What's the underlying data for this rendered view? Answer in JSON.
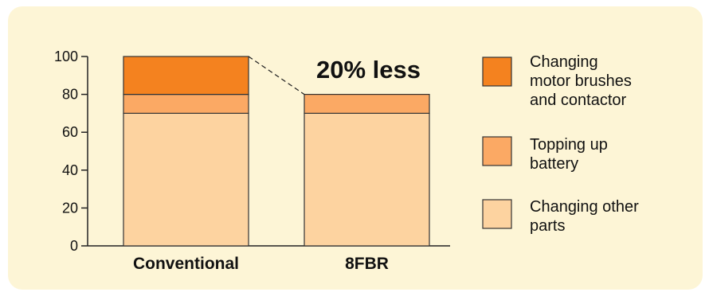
{
  "chart_data": {
    "type": "bar",
    "stacked": true,
    "categories": [
      "Conventional",
      "8FBR"
    ],
    "series": [
      {
        "name": "Changing other parts",
        "values": [
          70,
          70
        ],
        "color": "#fdd3a0"
      },
      {
        "name": "Topping up battery",
        "values": [
          10,
          10
        ],
        "color": "#fba964"
      },
      {
        "name": "Changing motor brushes and contactor",
        "values": [
          20,
          0
        ],
        "color": "#f4821f"
      }
    ],
    "legend_order": [
      "Changing motor brushes and contactor",
      "Topping up battery",
      "Changing other parts"
    ],
    "legend_placement": "right",
    "ylim": [
      0,
      100
    ],
    "yticks": [
      0,
      20,
      40,
      60,
      80,
      100
    ],
    "grid": false,
    "annotation": "20% less",
    "title": "",
    "xlabel": "",
    "ylabel": ""
  },
  "colors": {
    "panel_background": "#fdf5d6",
    "axis": "#222222",
    "bar_outline": "#333333"
  }
}
